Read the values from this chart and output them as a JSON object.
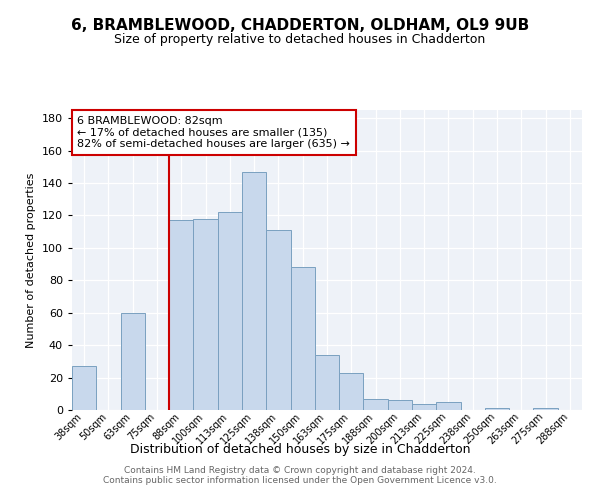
{
  "title": "6, BRAMBLEWOOD, CHADDERTON, OLDHAM, OL9 9UB",
  "subtitle": "Size of property relative to detached houses in Chadderton",
  "xlabel": "Distribution of detached houses by size in Chadderton",
  "ylabel": "Number of detached properties",
  "annotation_title": "6 BRAMBLEWOOD: 82sqm",
  "annotation_line1": "← 17% of detached houses are smaller (135)",
  "annotation_line2": "82% of semi-detached houses are larger (635) →",
  "bar_categories": [
    "38sqm",
    "50sqm",
    "63sqm",
    "75sqm",
    "88sqm",
    "100sqm",
    "113sqm",
    "125sqm",
    "138sqm",
    "150sqm",
    "163sqm",
    "175sqm",
    "188sqm",
    "200sqm",
    "213sqm",
    "225sqm",
    "238sqm",
    "250sqm",
    "263sqm",
    "275sqm",
    "288sqm"
  ],
  "bar_values": [
    27,
    0,
    60,
    0,
    117,
    118,
    122,
    147,
    111,
    88,
    34,
    23,
    7,
    6,
    4,
    5,
    0,
    1,
    0,
    1,
    0
  ],
  "bar_color": "#c8d8ec",
  "bar_edge_color": "#7aa0c0",
  "vline_color": "#cc0000",
  "vline_x_index": 4,
  "annotation_box_color": "#cc0000",
  "background_color": "#eef2f8",
  "ylim": [
    0,
    185
  ],
  "yticks": [
    0,
    20,
    40,
    60,
    80,
    100,
    120,
    140,
    160,
    180
  ],
  "footer_line1": "Contains HM Land Registry data © Crown copyright and database right 2024.",
  "footer_line2": "Contains public sector information licensed under the Open Government Licence v3.0."
}
